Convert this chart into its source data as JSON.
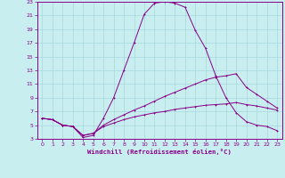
{
  "xlabel": "Windchill (Refroidissement éolien,°C)",
  "bg_color": "#c8eef0",
  "grid_color": "#a8d8dc",
  "line_color": "#880088",
  "xlim": [
    -0.5,
    23.5
  ],
  "ylim": [
    3,
    23
  ],
  "xticks": [
    0,
    1,
    2,
    3,
    4,
    5,
    6,
    7,
    8,
    9,
    10,
    11,
    12,
    13,
    14,
    15,
    16,
    17,
    18,
    19,
    20,
    21,
    22,
    23
  ],
  "yticks": [
    3,
    5,
    7,
    9,
    11,
    13,
    15,
    17,
    19,
    21,
    23
  ],
  "curve1_x": [
    0,
    1,
    2,
    3,
    4,
    5,
    6,
    7,
    8,
    9,
    10,
    11,
    12,
    13,
    14,
    15,
    16,
    17,
    18,
    19,
    20,
    21,
    22,
    23
  ],
  "curve1_y": [
    6.0,
    5.8,
    5.0,
    4.8,
    3.2,
    3.5,
    6.0,
    9.0,
    13.0,
    17.0,
    21.2,
    22.8,
    23.0,
    22.8,
    22.2,
    18.8,
    16.2,
    12.2,
    9.0,
    6.8,
    5.5,
    5.0,
    4.8,
    4.2
  ],
  "curve2_x": [
    0,
    1,
    2,
    3,
    4,
    5,
    6,
    7,
    8,
    9,
    10,
    11,
    12,
    13,
    14,
    15,
    16,
    17,
    18,
    19,
    20,
    21,
    22,
    23
  ],
  "curve2_y": [
    6.0,
    5.8,
    5.0,
    4.8,
    3.5,
    3.8,
    5.0,
    5.8,
    6.5,
    7.2,
    7.8,
    8.5,
    9.2,
    9.8,
    10.4,
    11.0,
    11.6,
    12.0,
    12.2,
    12.5,
    10.5,
    9.5,
    8.5,
    7.5
  ],
  "curve3_x": [
    0,
    1,
    2,
    3,
    4,
    5,
    6,
    7,
    8,
    9,
    10,
    11,
    12,
    13,
    14,
    15,
    16,
    17,
    18,
    19,
    20,
    21,
    22,
    23
  ],
  "curve3_y": [
    6.0,
    5.8,
    5.0,
    4.8,
    3.5,
    3.8,
    4.8,
    5.3,
    5.8,
    6.2,
    6.5,
    6.8,
    7.0,
    7.3,
    7.5,
    7.7,
    7.9,
    8.0,
    8.1,
    8.3,
    8.0,
    7.8,
    7.5,
    7.2
  ]
}
